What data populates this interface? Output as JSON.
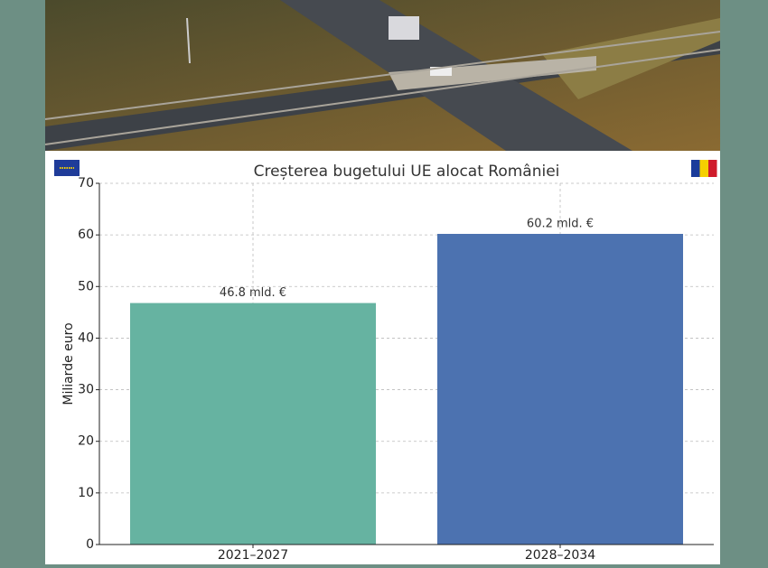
{
  "chart_data": {
    "type": "bar",
    "title": "Creșterea bugetului UE alocat României",
    "y_label": "Miliarde euro",
    "categories": [
      "2021–2027",
      "2028–2034"
    ],
    "values": [
      46.8,
      60.2
    ],
    "value_labels": [
      "46.8 mld. €",
      "60.2 mld. €"
    ],
    "colors": [
      "#66b3a1",
      "#4c72b0"
    ],
    "ylim": [
      0,
      70
    ],
    "yticks": [
      0,
      10,
      20,
      30,
      40,
      50,
      60,
      70
    ],
    "grid": true
  }
}
